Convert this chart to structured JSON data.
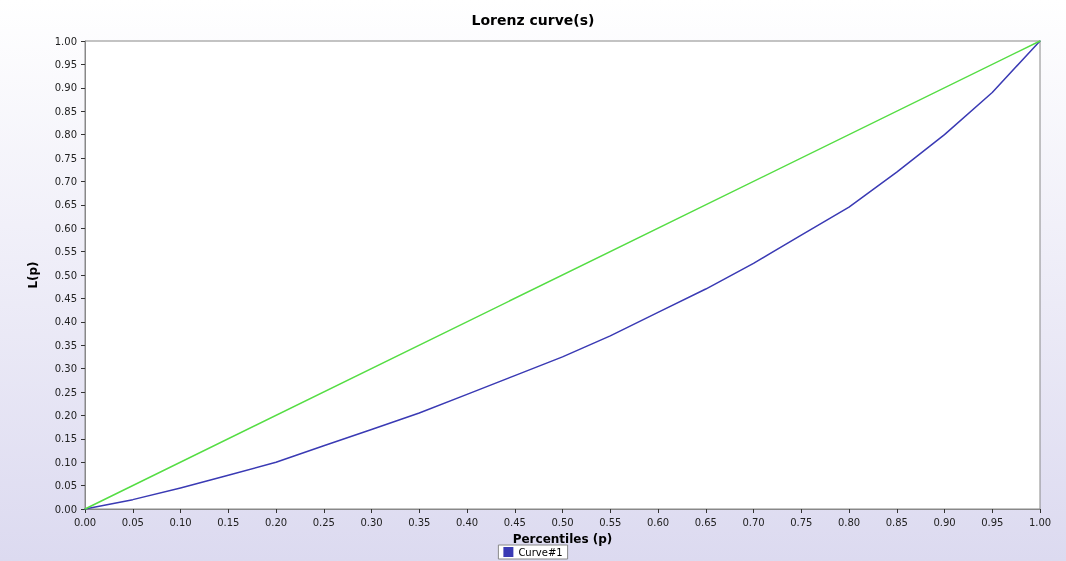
{
  "chart_data": {
    "type": "line",
    "title": "Lorenz curve(s)",
    "xlabel": "Percentiles (p)",
    "ylabel": "L(p)",
    "series": [
      {
        "name": "Curve#1",
        "color": "#3a3ab4",
        "x": [
          0,
          0.05,
          0.1,
          0.15,
          0.2,
          0.25,
          0.3,
          0.35,
          0.4,
          0.45,
          0.5,
          0.55,
          0.6,
          0.65,
          0.7,
          0.75,
          0.8,
          0.85,
          0.9,
          0.95,
          1
        ],
        "values": [
          0,
          0.02,
          0.045,
          0.072,
          0.1,
          0.135,
          0.17,
          0.205,
          0.245,
          0.285,
          0.325,
          0.37,
          0.42,
          0.47,
          0.525,
          0.585,
          0.645,
          0.72,
          0.8,
          0.89,
          1
        ]
      },
      {
        "color": "#55dd44",
        "x": [
          0,
          1
        ],
        "values": [
          0,
          1
        ]
      }
    ],
    "xlim": [
      0,
      1
    ],
    "xticks": [
      {
        "value": 0,
        "label": "0.00"
      },
      {
        "value": 0.05,
        "label": "0.05"
      },
      {
        "value": 0.1,
        "label": "0.10"
      },
      {
        "value": 0.15,
        "label": "0.15"
      },
      {
        "value": 0.2,
        "label": "0.20"
      },
      {
        "value": 0.25,
        "label": "0.25"
      },
      {
        "value": 0.3,
        "label": "0.30"
      },
      {
        "value": 0.35,
        "label": "0.35"
      },
      {
        "value": 0.4,
        "label": "0.40"
      },
      {
        "value": 0.45,
        "label": "0.45"
      },
      {
        "value": 0.5,
        "label": "0.50"
      },
      {
        "value": 0.55,
        "label": "0.55"
      },
      {
        "value": 0.6,
        "label": "0.60"
      },
      {
        "value": 0.65,
        "label": "0.65"
      },
      {
        "value": 0.7,
        "label": "0.70"
      },
      {
        "value": 0.75,
        "label": "0.75"
      },
      {
        "value": 0.8,
        "label": "0.80"
      },
      {
        "value": 0.85,
        "label": "0.85"
      },
      {
        "value": 0.9,
        "label": "0.90"
      },
      {
        "value": 0.95,
        "label": "0.95"
      },
      {
        "value": 1,
        "label": "1.00"
      }
    ],
    "ylim": [
      0,
      1
    ],
    "yticks": [
      {
        "value": 0,
        "label": "0.00"
      },
      {
        "value": 0.05,
        "label": "0.05"
      },
      {
        "value": 0.1,
        "label": "0.10"
      },
      {
        "value": 0.15,
        "label": "0.15"
      },
      {
        "value": 0.2,
        "label": "0.20"
      },
      {
        "value": 0.25,
        "label": "0.25"
      },
      {
        "value": 0.3,
        "label": "0.30"
      },
      {
        "value": 0.35,
        "label": "0.35"
      },
      {
        "value": 0.4,
        "label": "0.40"
      },
      {
        "value": 0.45,
        "label": "0.45"
      },
      {
        "value": 0.5,
        "label": "0.50"
      },
      {
        "value": 0.55,
        "label": "0.55"
      },
      {
        "value": 0.6,
        "label": "0.60"
      },
      {
        "value": 0.65,
        "label": "0.65"
      },
      {
        "value": 0.7,
        "label": "0.70"
      },
      {
        "value": 0.75,
        "label": "0.75"
      },
      {
        "value": 0.8,
        "label": "0.80"
      },
      {
        "value": 0.85,
        "label": "0.85"
      },
      {
        "value": 0.9,
        "label": "0.90"
      },
      {
        "value": 0.95,
        "label": "0.95"
      },
      {
        "value": 1,
        "label": "1.00"
      }
    ],
    "grid": false,
    "legend": "bottom",
    "marker": "none",
    "line_style": "solid"
  }
}
